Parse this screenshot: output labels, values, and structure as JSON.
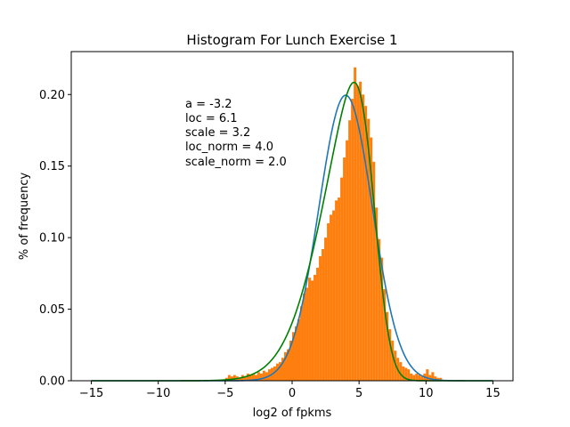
{
  "chart_data": {
    "type": "histogram",
    "title": "Histogram For Lunch Exercise 1",
    "xlabel": "log2 of fpkms",
    "ylabel": "% of frequency",
    "xlim": [
      -16.5,
      16.5
    ],
    "ylim": [
      0,
      0.23
    ],
    "xticks": [
      -15,
      -10,
      -5,
      0,
      5,
      10,
      15
    ],
    "xtick_labels": [
      "−15",
      "−10",
      "−5",
      "0",
      "5",
      "10",
      "15"
    ],
    "yticks": [
      0.0,
      0.05,
      0.1,
      0.15,
      0.2
    ],
    "ytick_labels": [
      "0.00",
      "0.05",
      "0.10",
      "0.15",
      "0.20"
    ],
    "grid": false,
    "annotations": [
      "a = -3.2",
      "loc = 6.1",
      "scale = 3.2",
      "loc_norm = 4.0",
      "scale_norm = 2.0"
    ],
    "histogram": {
      "color": "#ff7f0e",
      "bin_width": 0.2,
      "bins": [
        {
          "x": -5.0,
          "h": 0.002
        },
        {
          "x": -4.8,
          "h": 0.004
        },
        {
          "x": -4.6,
          "h": 0.003
        },
        {
          "x": -4.4,
          "h": 0.004
        },
        {
          "x": -4.2,
          "h": 0.003
        },
        {
          "x": -4.0,
          "h": 0.002
        },
        {
          "x": -3.8,
          "h": 0.004
        },
        {
          "x": -3.6,
          "h": 0.003
        },
        {
          "x": -3.4,
          "h": 0.005
        },
        {
          "x": -3.2,
          "h": 0.004
        },
        {
          "x": -3.0,
          "h": 0.005
        },
        {
          "x": -2.8,
          "h": 0.004
        },
        {
          "x": -2.6,
          "h": 0.006
        },
        {
          "x": -2.4,
          "h": 0.005
        },
        {
          "x": -2.2,
          "h": 0.007
        },
        {
          "x": -2.0,
          "h": 0.006
        },
        {
          "x": -1.8,
          "h": 0.008
        },
        {
          "x": -1.6,
          "h": 0.009
        },
        {
          "x": -1.4,
          "h": 0.01
        },
        {
          "x": -1.2,
          "h": 0.012
        },
        {
          "x": -1.0,
          "h": 0.013
        },
        {
          "x": -0.8,
          "h": 0.016
        },
        {
          "x": -0.6,
          "h": 0.02
        },
        {
          "x": -0.4,
          "h": 0.022
        },
        {
          "x": -0.2,
          "h": 0.028
        },
        {
          "x": 0.0,
          "h": 0.034
        },
        {
          "x": 0.2,
          "h": 0.038
        },
        {
          "x": 0.4,
          "h": 0.043
        },
        {
          "x": 0.6,
          "h": 0.052
        },
        {
          "x": 0.8,
          "h": 0.061
        },
        {
          "x": 1.0,
          "h": 0.065
        },
        {
          "x": 1.2,
          "h": 0.072
        },
        {
          "x": 1.4,
          "h": 0.07
        },
        {
          "x": 1.6,
          "h": 0.074
        },
        {
          "x": 1.8,
          "h": 0.079
        },
        {
          "x": 2.0,
          "h": 0.087
        },
        {
          "x": 2.2,
          "h": 0.092
        },
        {
          "x": 2.4,
          "h": 0.1
        },
        {
          "x": 2.6,
          "h": 0.11
        },
        {
          "x": 2.8,
          "h": 0.116
        },
        {
          "x": 3.0,
          "h": 0.119
        },
        {
          "x": 3.2,
          "h": 0.126
        },
        {
          "x": 3.4,
          "h": 0.128
        },
        {
          "x": 3.6,
          "h": 0.142
        },
        {
          "x": 3.8,
          "h": 0.156
        },
        {
          "x": 4.0,
          "h": 0.168
        },
        {
          "x": 4.2,
          "h": 0.182
        },
        {
          "x": 4.4,
          "h": 0.197
        },
        {
          "x": 4.6,
          "h": 0.219
        },
        {
          "x": 4.8,
          "h": 0.206
        },
        {
          "x": 5.0,
          "h": 0.209
        },
        {
          "x": 5.2,
          "h": 0.2
        },
        {
          "x": 5.4,
          "h": 0.192
        },
        {
          "x": 5.6,
          "h": 0.183
        },
        {
          "x": 5.8,
          "h": 0.17
        },
        {
          "x": 6.0,
          "h": 0.153
        },
        {
          "x": 6.2,
          "h": 0.121
        },
        {
          "x": 6.4,
          "h": 0.099
        },
        {
          "x": 6.6,
          "h": 0.086
        },
        {
          "x": 6.8,
          "h": 0.064
        },
        {
          "x": 7.0,
          "h": 0.048
        },
        {
          "x": 7.2,
          "h": 0.036
        },
        {
          "x": 7.4,
          "h": 0.028
        },
        {
          "x": 7.6,
          "h": 0.021
        },
        {
          "x": 7.8,
          "h": 0.016
        },
        {
          "x": 8.0,
          "h": 0.013
        },
        {
          "x": 8.2,
          "h": 0.01
        },
        {
          "x": 8.4,
          "h": 0.009
        },
        {
          "x": 8.6,
          "h": 0.008
        },
        {
          "x": 8.8,
          "h": 0.005
        },
        {
          "x": 9.0,
          "h": 0.004
        },
        {
          "x": 9.2,
          "h": 0.005
        },
        {
          "x": 9.4,
          "h": 0.004
        },
        {
          "x": 9.6,
          "h": 0.003
        },
        {
          "x": 9.8,
          "h": 0.005
        },
        {
          "x": 10.0,
          "h": 0.008
        },
        {
          "x": 10.2,
          "h": 0.004
        },
        {
          "x": 10.4,
          "h": 0.006
        },
        {
          "x": 10.6,
          "h": 0.003
        },
        {
          "x": 10.8,
          "h": 0.002
        },
        {
          "x": 11.0,
          "h": 0.002
        }
      ]
    },
    "series": [
      {
        "type": "line",
        "color": "#1f77b4",
        "distribution": "normal",
        "loc": 4.0,
        "scale": 2.0
      },
      {
        "type": "line",
        "color": "#008000",
        "distribution": "skewnorm",
        "a": -3.2,
        "loc": 6.1,
        "scale": 3.2
      }
    ],
    "curve_range": [
      -15,
      15
    ]
  }
}
